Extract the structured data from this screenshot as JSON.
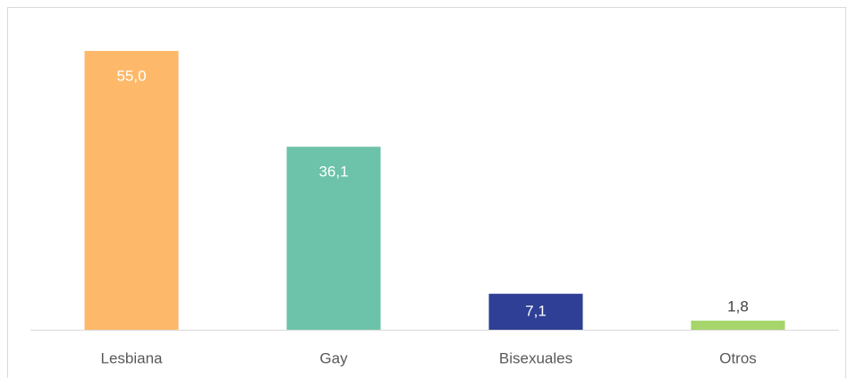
{
  "chart_data": {
    "type": "bar",
    "categories": [
      "Lesbiana",
      "Gay",
      "Bisexuales",
      "Otros"
    ],
    "values": [
      55.0,
      36.1,
      7.1,
      1.8
    ],
    "value_labels": [
      "55,0",
      "36,1",
      "7,1",
      "1,8"
    ],
    "colors": [
      "#fdb969",
      "#6cc3a9",
      "#2e3f95",
      "#a6d66b"
    ]
  }
}
